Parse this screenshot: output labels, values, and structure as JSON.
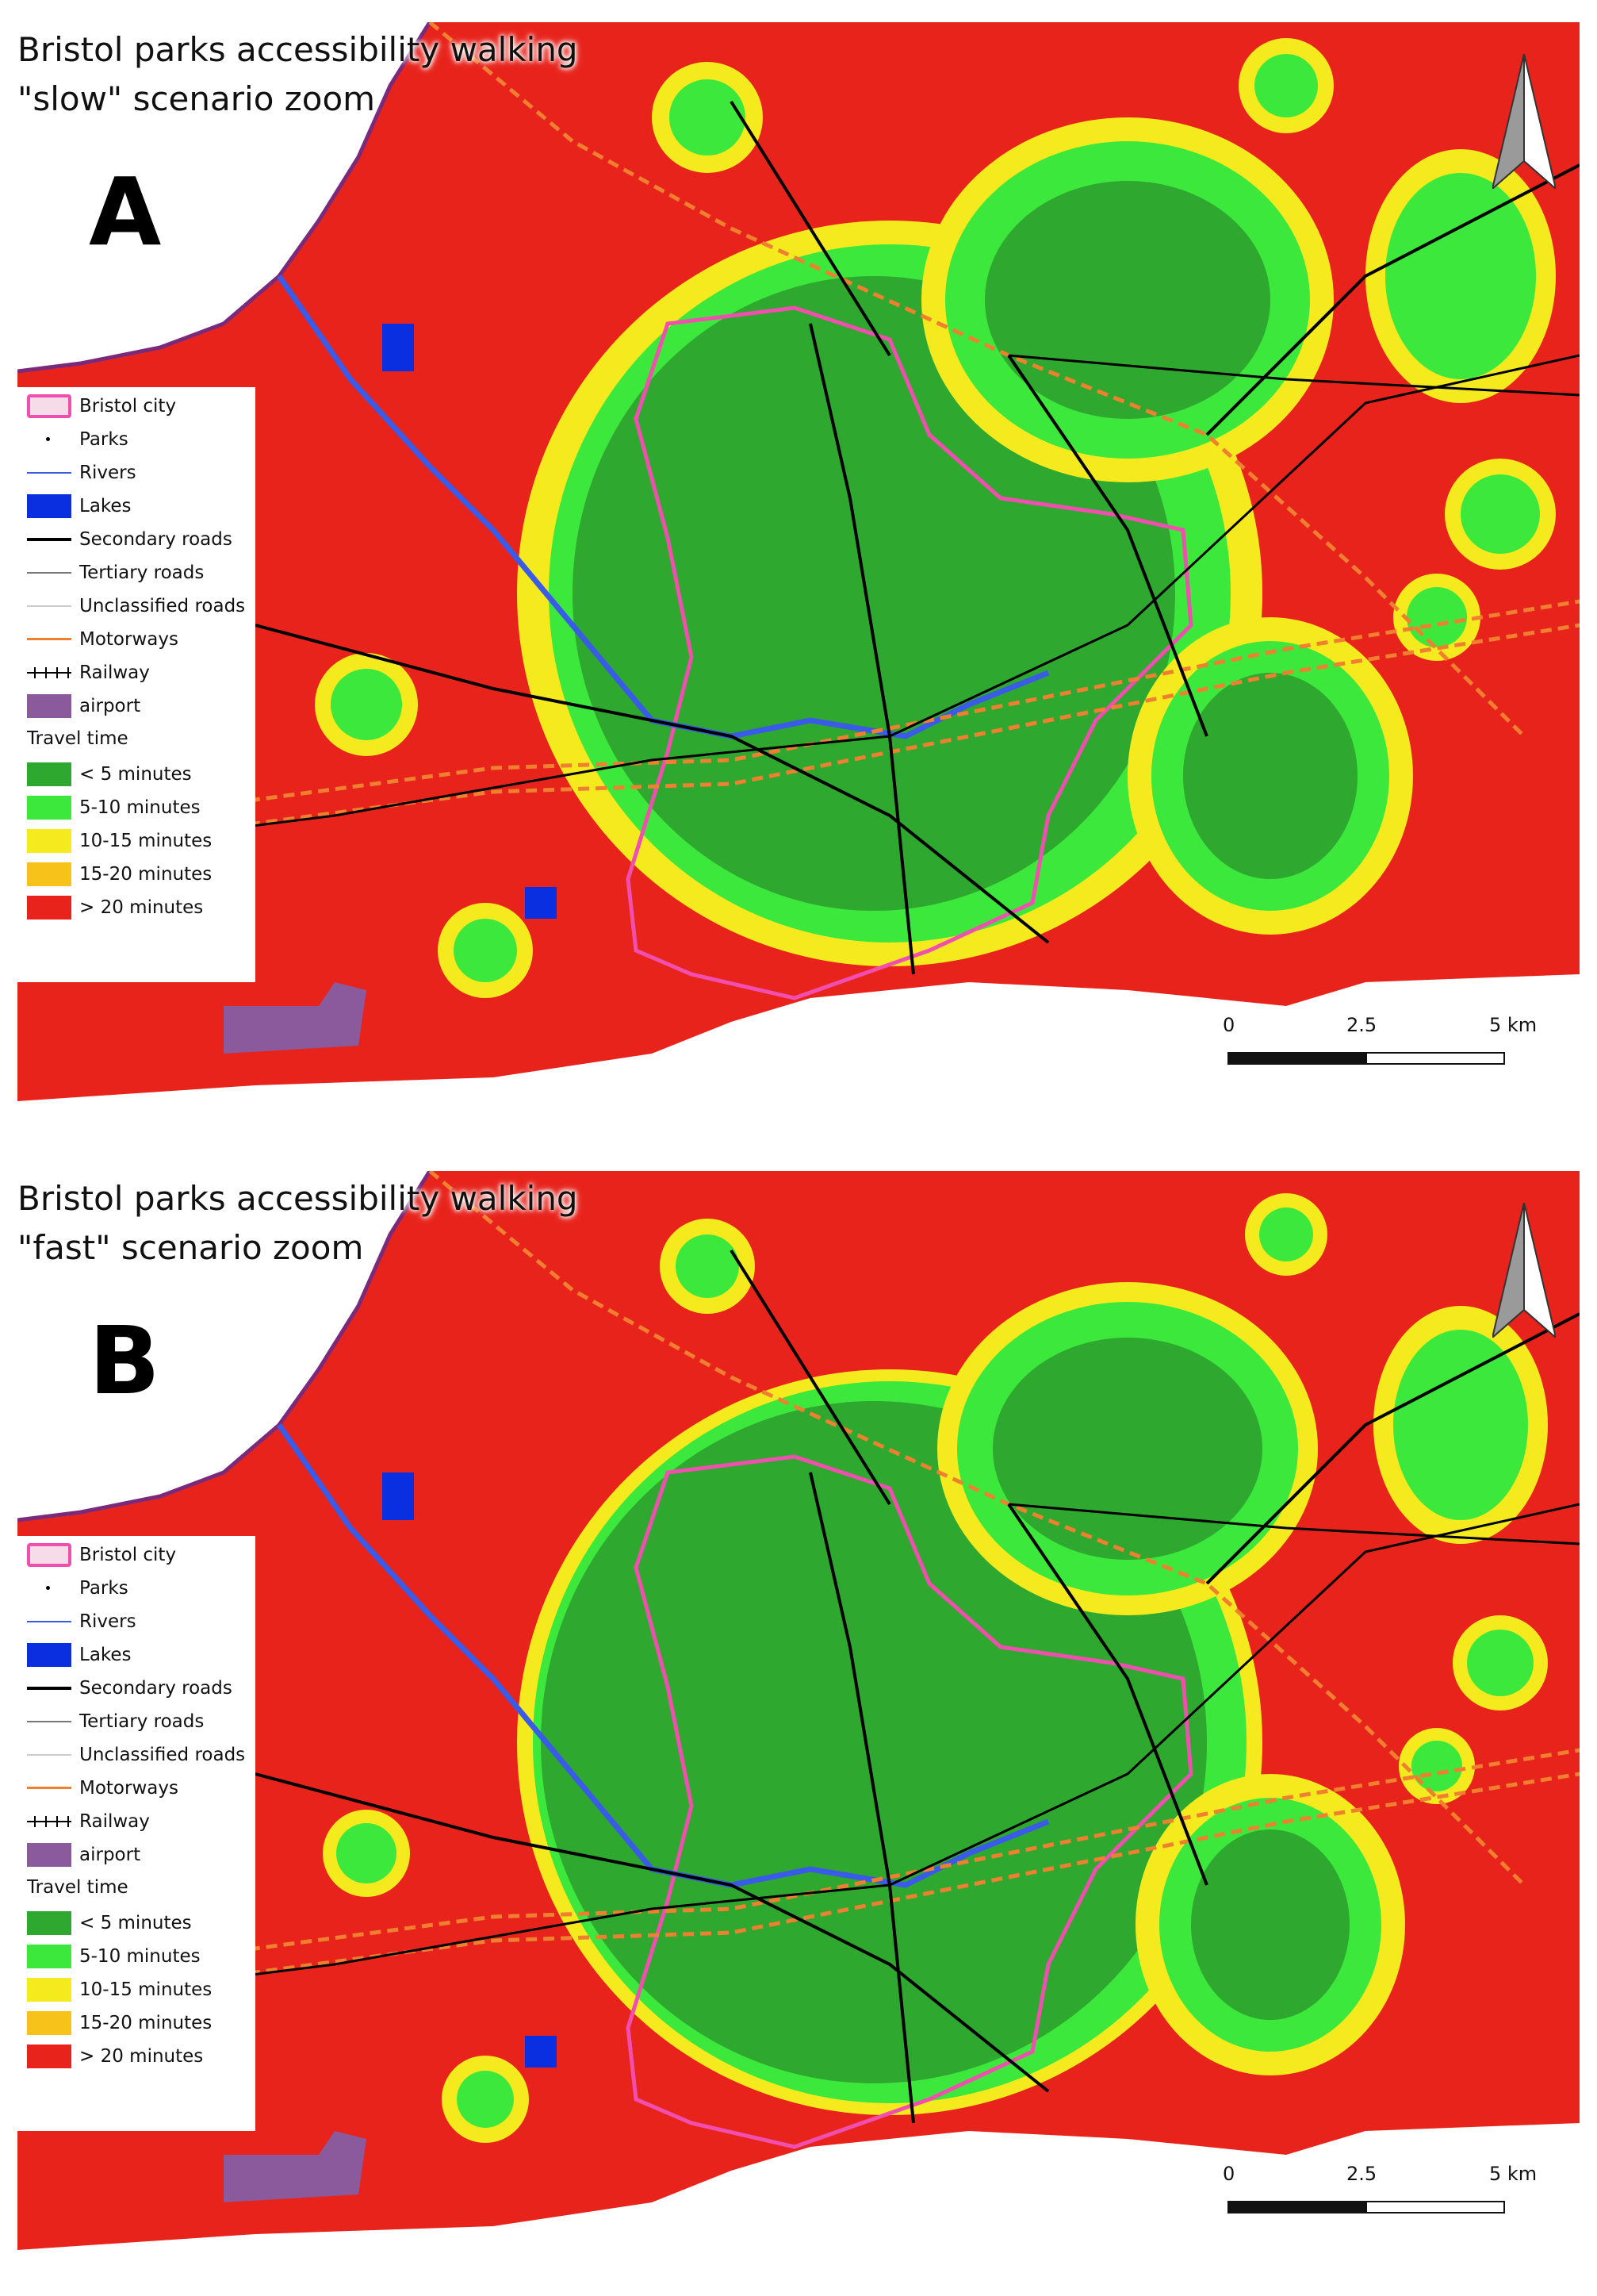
{
  "panels": [
    {
      "id": "A",
      "title_line1": "Bristol parks accessibility walking",
      "title_line2": "\"slow\" scenario zoom",
      "letter": "A"
    },
    {
      "id": "B",
      "title_line1": "Bristol parks accessibility walking",
      "title_line2": "\"fast\" scenario zoom",
      "letter": "B"
    }
  ],
  "legend": {
    "items": [
      {
        "label": "Bristol city",
        "symbol": "bristol-city-outline",
        "color": "#f04fb0"
      },
      {
        "label": "Parks",
        "symbol": "park-dot",
        "color": "#000000"
      },
      {
        "label": "Rivers",
        "symbol": "river-line",
        "color": "#3a5ae8"
      },
      {
        "label": "Lakes",
        "symbol": "lake-fill",
        "color": "#0a2fe0"
      },
      {
        "label": "Secondary roads",
        "symbol": "secondary-road-line",
        "color": "#000000"
      },
      {
        "label": "Tertiary roads",
        "symbol": "tertiary-road-line",
        "color": "#777777"
      },
      {
        "label": "Unclassified roads",
        "symbol": "unclassified-road-line",
        "color": "#cccccc"
      },
      {
        "label": "Motorways",
        "symbol": "motorway-line",
        "color": "#f08030"
      },
      {
        "label": "Railway",
        "symbol": "railway-line",
        "color": "#000000"
      },
      {
        "label": "airport",
        "symbol": "airport-fill",
        "color": "#8a5a9c"
      }
    ],
    "travel_time_heading": "Travel time",
    "travel_time_classes": [
      {
        "label": "< 5 minutes",
        "color": "#2ea82e"
      },
      {
        "label": "5-10 minutes",
        "color": "#3ce83c"
      },
      {
        "label": "10-15 minutes",
        "color": "#f5ea1e"
      },
      {
        "label": "15-20 minutes",
        "color": "#f7c21a"
      },
      {
        "label": "> 20 minutes",
        "color": "#e8231c"
      }
    ]
  },
  "scale_bar": {
    "labels": [
      "0",
      "2.5",
      "5 km"
    ]
  },
  "colors": {
    "background_far": "#e8231c",
    "sea_outline": "#7a2a7a"
  }
}
